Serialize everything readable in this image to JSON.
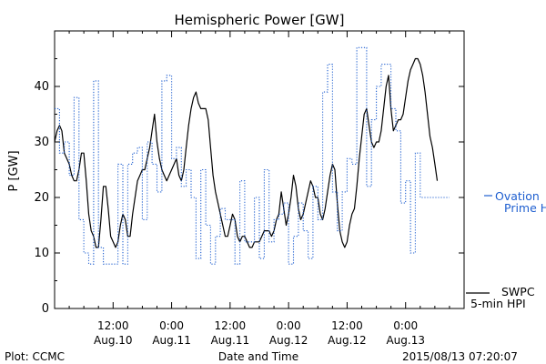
{
  "chart_data": {
    "type": "line",
    "title": "Hemispheric Power [GW]",
    "ylabel": "P [GW]",
    "xlabel": "Date and Time",
    "ylim": [
      0,
      50
    ],
    "yticks": [
      0,
      10,
      20,
      30,
      40
    ],
    "xlim": [
      0,
      84
    ],
    "xticks": [
      {
        "x": 12,
        "line1": "12:00",
        "line2": "Aug.10"
      },
      {
        "x": 24,
        "line1": "0:00",
        "line2": "Aug.11"
      },
      {
        "x": 36,
        "line1": "12:00",
        "line2": "Aug.11"
      },
      {
        "x": 48,
        "line1": "0:00",
        "line2": "Aug.12"
      },
      {
        "x": 60,
        "line1": "12:00",
        "line2": "Aug.12"
      },
      {
        "x": 72,
        "line1": "0:00",
        "line2": "Aug.13"
      }
    ],
    "grid": false,
    "series": [
      {
        "name": "SWPC 5-min HPI",
        "color": "#000000",
        "style": "solid",
        "x": [
          0,
          0.5,
          1,
          1.5,
          2,
          2.5,
          3,
          3.5,
          4,
          4.5,
          5,
          5.5,
          6,
          6.5,
          7,
          7.5,
          8,
          8.5,
          9,
          9.5,
          10,
          10.5,
          11,
          11.5,
          12,
          12.5,
          13,
          13.5,
          14,
          14.5,
          15,
          15.5,
          16,
          16.5,
          17,
          17.5,
          18,
          18.5,
          19,
          19.5,
          20,
          20.5,
          21,
          21.5,
          22,
          22.5,
          23,
          23.5,
          24,
          24.5,
          25,
          25.5,
          26,
          26.5,
          27,
          27.5,
          28,
          28.5,
          29,
          29.5,
          30,
          30.5,
          31,
          31.5,
          32,
          32.5,
          33,
          33.5,
          34,
          34.5,
          35,
          35.5,
          36,
          36.5,
          37,
          37.5,
          38,
          38.5,
          39,
          39.5,
          40,
          40.5,
          41,
          41.5,
          42,
          42.5,
          43,
          43.5,
          44,
          44.5,
          45,
          45.5,
          46,
          46.5,
          47,
          47.5,
          48,
          48.5,
          49,
          49.5,
          50,
          50.5,
          51,
          51.5,
          52,
          52.5,
          53,
          53.5,
          54,
          54.5,
          55,
          55.5,
          56,
          56.5,
          57,
          57.5,
          58,
          58.5,
          59,
          59.5,
          60,
          60.5,
          61,
          61.5,
          62,
          62.5,
          63,
          63.5,
          64,
          64.5,
          65,
          65.5,
          66,
          66.5,
          67,
          67.5,
          68,
          68.5,
          69,
          69.5,
          70,
          70.5,
          71,
          71.5,
          72,
          72.5,
          73,
          73.5,
          74,
          74.5,
          75,
          75.5,
          76,
          76.5,
          77,
          77.5,
          78,
          78.5
        ],
        "values": [
          30,
          32,
          33,
          32,
          28,
          27,
          26,
          24,
          23,
          23,
          25,
          28,
          28,
          23,
          17,
          14,
          13,
          11,
          11,
          16,
          22,
          22,
          18,
          13,
          12,
          11,
          12,
          15,
          17,
          16,
          13,
          13,
          17,
          20,
          23,
          24,
          25,
          25,
          27,
          29,
          32,
          35,
          30,
          27,
          25,
          24,
          23,
          24,
          25,
          26,
          27,
          24,
          23,
          25,
          29,
          33,
          36,
          38,
          39,
          37,
          36,
          36,
          36,
          34,
          29,
          24,
          21,
          19,
          17,
          15,
          13,
          13,
          15,
          17,
          16,
          13,
          12,
          13,
          13,
          12,
          11,
          11,
          12,
          12,
          12,
          13,
          14,
          14,
          14,
          13,
          14,
          16,
          17,
          21,
          18,
          15,
          17,
          20,
          24,
          22,
          18,
          16,
          17,
          19,
          21,
          23,
          22,
          20,
          20,
          17,
          16,
          18,
          21,
          24,
          26,
          25,
          19,
          14,
          12,
          11,
          12,
          15,
          17,
          18,
          22,
          27,
          31,
          35,
          36,
          33,
          30,
          29,
          30,
          30,
          32,
          36,
          40,
          42,
          36,
          32,
          33,
          34,
          34,
          35,
          38,
          41,
          43,
          44,
          45,
          45,
          44,
          42,
          39,
          35,
          31,
          29,
          26,
          23
        ]
      },
      {
        "name": "Ovation Prime HPI",
        "color": "#1f5fd0",
        "style": "dotted",
        "x": [
          0,
          1,
          2,
          3,
          4,
          5,
          6,
          7,
          8,
          9,
          10,
          11,
          12,
          13,
          14,
          15,
          16,
          17,
          18,
          19,
          20,
          21,
          22,
          23,
          24,
          25,
          26,
          27,
          28,
          29,
          30,
          31,
          32,
          33,
          34,
          35,
          36,
          37,
          38,
          39,
          40,
          41,
          42,
          43,
          44,
          45,
          46,
          47,
          48,
          49,
          50,
          51,
          52,
          53,
          54,
          55,
          56,
          57,
          58,
          59,
          60,
          61,
          62,
          63,
          64,
          65,
          66,
          67,
          68,
          69,
          70,
          71,
          72,
          73,
          74,
          75,
          76,
          77,
          78,
          79,
          80
        ],
        "values": [
          36,
          28,
          30,
          24,
          38,
          16,
          10,
          8,
          41,
          11,
          8,
          8,
          8,
          26,
          8,
          26,
          28,
          29,
          16,
          30,
          26,
          21,
          41,
          42,
          27,
          29,
          22,
          25,
          20,
          9,
          25,
          15,
          8,
          13,
          18,
          16,
          16,
          8,
          23,
          12,
          12,
          20,
          9,
          25,
          12,
          16,
          17,
          19,
          8,
          13,
          19,
          14,
          9,
          22,
          16,
          39,
          44,
          21,
          14,
          21,
          27,
          26,
          47,
          47,
          22,
          34,
          40,
          44,
          44,
          36,
          32,
          19,
          23,
          10,
          28,
          20,
          20,
          20,
          20,
          20,
          20
        ]
      }
    ],
    "legend": [
      {
        "name": "Ovation Prime HPI",
        "placement": "right-middle"
      },
      {
        "name": "SWPC 5-min HPI",
        "placement": "right-bottom"
      }
    ]
  },
  "legend_text": {
    "ovation_line1": "Ovation",
    "ovation_line2": "Prime HPI",
    "swpc_line1": "SWPC",
    "swpc_line2": "5-min HPI"
  },
  "footer": {
    "plot_credit": "Plot: CCMC",
    "timestamp": "2015/08/13 07:20:07"
  }
}
